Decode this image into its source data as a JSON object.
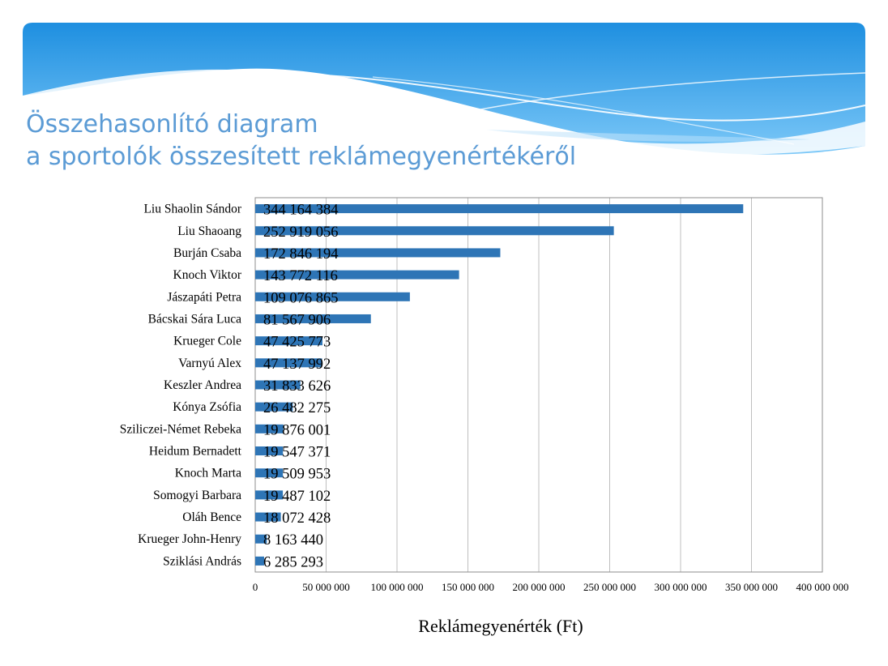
{
  "slide": {
    "title_line1": "Összehasonlító diagram",
    "title_line2": "a sportolók összesített reklámegyenértékéről"
  },
  "chart_data": {
    "type": "bar",
    "orientation": "horizontal",
    "categories": [
      "Liu Shaolin Sándor",
      "Liu Shaoang",
      "Burján Csaba",
      "Knoch Viktor",
      "Jászapáti Petra",
      "Bácskai Sára Luca",
      "Krueger Cole",
      "Varnyú Alex",
      "Keszler Andrea",
      "Kónya Zsófia",
      "Sziliczei-Német Rebeka",
      "Heidum Bernadett",
      "Knoch Marta",
      "Somogyi Barbara",
      "Oláh Bence",
      "Krueger John-Henry",
      "Sziklási András"
    ],
    "values": [
      344164384,
      252919056,
      172846194,
      143772116,
      109076865,
      81567906,
      47425773,
      47137992,
      31833626,
      26482275,
      19876001,
      19547371,
      19509953,
      19487102,
      18072428,
      8163440,
      6285293
    ],
    "data_labels": [
      "344 164 384",
      "252 919 056",
      "172 846 194",
      "143 772 116",
      "109 076 865",
      "81 567 906",
      "47 425 773",
      "47 137 992",
      "31 833 626",
      "26 482 275",
      "19 876 001",
      "19 547 371",
      "19 509 953",
      "19 487 102",
      "18 072 428",
      "8 163 440",
      "6 285 293"
    ],
    "xlim": [
      0,
      400000000
    ],
    "x_ticks": [
      0,
      50000000,
      100000000,
      150000000,
      200000000,
      250000000,
      300000000,
      350000000,
      400000000
    ],
    "x_tick_labels": [
      "0",
      "50 000 000",
      "100 000 000",
      "150 000 000",
      "200 000 000",
      "250 000 000",
      "300 000 000",
      "350 000 000",
      "400 000 000"
    ],
    "xlabel": "Reklámegyenérték (Ft)",
    "ylabel": "",
    "grid": "vertical",
    "bar_color": "#2e75b6"
  }
}
